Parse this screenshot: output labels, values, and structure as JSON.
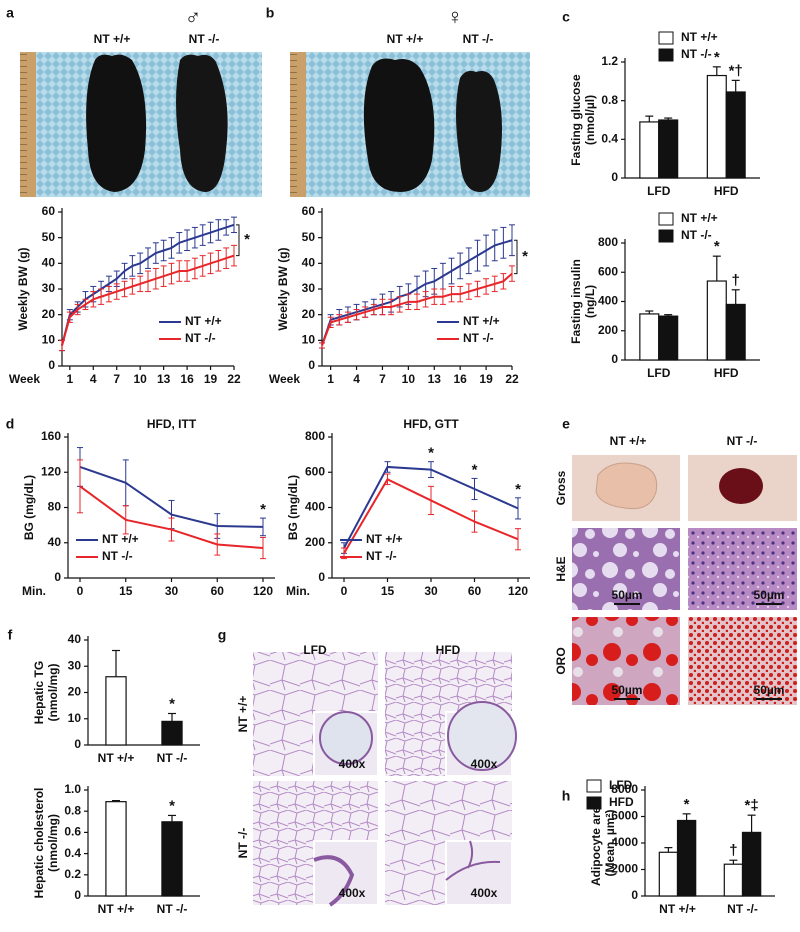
{
  "figure": {
    "panel_letters": [
      "a",
      "b",
      "c",
      "d",
      "e",
      "f",
      "g",
      "h"
    ],
    "a": {
      "sex": "♂",
      "genotypes": [
        "NT +/+",
        "NT -/-"
      ]
    },
    "b": {
      "sex": "♀",
      "genotypes": [
        "NT +/+",
        "NT -/-"
      ]
    },
    "e": {
      "columns": [
        "NT +/+",
        "NT -/-"
      ],
      "rows": [
        "Gross",
        "H&E",
        "ORO"
      ],
      "scale_bar": "50µm"
    },
    "g": {
      "columns": [
        "LFD",
        "HFD"
      ],
      "rows": [
        "NT +/+",
        "NT -/-"
      ],
      "magnification": "400x"
    }
  },
  "chart_data": [
    {
      "type": "line",
      "y_label": [
        "Weekly BW (g)"
      ],
      "x_label": "Week",
      "x": [
        0,
        1,
        2,
        3,
        4,
        5,
        6,
        7,
        8,
        9,
        10,
        11,
        12,
        13,
        14,
        15,
        16,
        17,
        18,
        19,
        20,
        21,
        22
      ],
      "xlim": [
        0,
        22
      ],
      "xticks": [
        1,
        4,
        7,
        10,
        13,
        16,
        19,
        22
      ],
      "ylim": [
        0,
        60
      ],
      "yticks": [
        0,
        10,
        20,
        30,
        40,
        50,
        60
      ],
      "legend": "lower right",
      "significance": "*",
      "series": [
        {
          "name": "NT +/+",
          "color": "#2b3990",
          "values": [
            8,
            20,
            23,
            26,
            28,
            30,
            32,
            34,
            37,
            39,
            40,
            42,
            44,
            45,
            46,
            48,
            49,
            50,
            51,
            52,
            53,
            54,
            55
          ],
          "errors": [
            2,
            2,
            2,
            3,
            3,
            3,
            3,
            3,
            3,
            4,
            4,
            4,
            4,
            4,
            4,
            4,
            4,
            4,
            4,
            4,
            4,
            3,
            3
          ]
        },
        {
          "name": "NT -/-",
          "color": "#e8262a",
          "values": [
            8,
            19,
            22,
            24,
            26,
            27,
            28,
            29,
            30,
            31,
            32,
            33,
            34,
            35,
            36,
            37,
            37,
            38,
            39,
            40,
            41,
            42,
            43
          ],
          "errors": [
            2,
            2,
            2,
            2,
            3,
            3,
            3,
            3,
            3,
            3,
            3,
            4,
            4,
            4,
            4,
            4,
            4,
            4,
            4,
            4,
            4,
            4,
            4
          ]
        }
      ]
    },
    {
      "type": "line",
      "y_label": [
        "Weekly BW (g)"
      ],
      "x_label": "Week",
      "x": [
        0,
        1,
        2,
        3,
        4,
        5,
        6,
        7,
        8,
        9,
        10,
        11,
        12,
        13,
        14,
        15,
        16,
        17,
        18,
        19,
        20,
        21,
        22
      ],
      "xlim": [
        0,
        22
      ],
      "xticks": [
        1,
        4,
        7,
        10,
        13,
        16,
        19,
        22
      ],
      "ylim": [
        0,
        60
      ],
      "yticks": [
        0,
        10,
        20,
        30,
        40,
        50,
        60
      ],
      "legend": "lower right",
      "significance": "*",
      "series": [
        {
          "name": "NT +/+",
          "color": "#2b3990",
          "values": [
            8,
            18,
            19,
            20,
            21,
            22,
            23,
            24,
            25,
            27,
            28,
            30,
            32,
            33,
            35,
            37,
            39,
            41,
            43,
            45,
            47,
            48,
            49
          ],
          "errors": [
            1,
            2,
            3,
            3,
            3,
            3,
            3,
            4,
            4,
            4,
            4,
            5,
            5,
            5,
            5,
            5,
            5,
            5,
            6,
            6,
            6,
            6,
            6
          ]
        },
        {
          "name": "NT -/-",
          "color": "#e8262a",
          "values": [
            8,
            17,
            18,
            19,
            20,
            21,
            22,
            23,
            23,
            24,
            25,
            25,
            26,
            27,
            27,
            28,
            28,
            29,
            30,
            31,
            32,
            33,
            36
          ],
          "errors": [
            1,
            2,
            2,
            2,
            2,
            2,
            2,
            3,
            3,
            3,
            3,
            3,
            3,
            3,
            3,
            3,
            3,
            3,
            3,
            3,
            3,
            3,
            3
          ]
        }
      ]
    },
    {
      "type": "bar",
      "y_label": [
        "Fasting glucose",
        "(nmol/µl)"
      ],
      "categories": [
        "LFD",
        "HFD"
      ],
      "ylim": [
        0,
        1.2
      ],
      "yticks": [
        0,
        0.4,
        0.8,
        1.2
      ],
      "legend": "top",
      "series": [
        {
          "name": "NT +/+",
          "color": "#ffffff",
          "values": [
            0.58,
            1.06
          ],
          "errors": [
            0.06,
            0.09
          ],
          "annotations": [
            null,
            "*"
          ]
        },
        {
          "name": "NT -/-",
          "color": "#111111",
          "values": [
            0.6,
            0.89
          ],
          "errors": [
            0.02,
            0.12
          ],
          "annotations": [
            null,
            "*†"
          ]
        }
      ]
    },
    {
      "type": "bar",
      "y_label": [
        "Fasting insulin",
        "(ng/L)"
      ],
      "categories": [
        "LFD",
        "HFD"
      ],
      "ylim": [
        0,
        800
      ],
      "yticks": [
        0,
        200,
        400,
        600,
        800
      ],
      "legend": "top",
      "series": [
        {
          "name": "NT +/+",
          "color": "#ffffff",
          "values": [
            315,
            540
          ],
          "errors": [
            20,
            170
          ],
          "annotations": [
            null,
            "*"
          ]
        },
        {
          "name": "NT -/-",
          "color": "#111111",
          "values": [
            300,
            380
          ],
          "errors": [
            10,
            100
          ],
          "annotations": [
            null,
            "†"
          ]
        }
      ]
    },
    {
      "type": "line",
      "title": "HFD, ITT",
      "y_label": [
        "BG (mg/dL)"
      ],
      "x_label": "Min.",
      "categories": [
        "0",
        "15",
        "30",
        "60",
        "120"
      ],
      "ylim": [
        0,
        160
      ],
      "yticks": [
        0,
        40,
        80,
        120,
        160
      ],
      "legend": "lower left",
      "point_annotations": [
        null,
        null,
        null,
        null,
        "*"
      ],
      "series": [
        {
          "name": "NT +/+",
          "color": "#2b3990",
          "values": [
            126,
            108,
            72,
            59,
            58
          ],
          "errors": [
            22,
            26,
            16,
            14,
            10
          ]
        },
        {
          "name": "NT -/-",
          "color": "#e8262a",
          "values": [
            104,
            66,
            55,
            38,
            34
          ],
          "errors": [
            30,
            16,
            13,
            12,
            12
          ]
        }
      ]
    },
    {
      "type": "line",
      "title": "HFD, GTT",
      "y_label": [
        "BG (mg/dL)"
      ],
      "x_label": "Min.",
      "categories": [
        "0",
        "15",
        "30",
        "60",
        "120"
      ],
      "ylim": [
        0,
        800
      ],
      "yticks": [
        0,
        200,
        400,
        600,
        800
      ],
      "legend": "lower left",
      "point_annotations": [
        null,
        null,
        "*",
        "*",
        "*"
      ],
      "series": [
        {
          "name": "NT +/+",
          "color": "#2b3990",
          "values": [
            170,
            630,
            615,
            505,
            395
          ],
          "errors": [
            30,
            30,
            45,
            60,
            60
          ]
        },
        {
          "name": "NT -/-",
          "color": "#e8262a",
          "values": [
            140,
            560,
            440,
            320,
            220
          ],
          "errors": [
            30,
            30,
            80,
            60,
            60
          ]
        }
      ]
    },
    {
      "type": "bar",
      "y_label": [
        "Hepatic TG",
        "(nmol/mg)"
      ],
      "categories": [
        "NT +/+",
        "NT -/-"
      ],
      "ylim": [
        0,
        40
      ],
      "yticks": [
        0,
        10,
        20,
        30,
        40
      ],
      "series": [
        {
          "colors": [
            "#ffffff",
            "#111111"
          ],
          "values": [
            26,
            9
          ],
          "errors": [
            10,
            3
          ],
          "annotations": [
            null,
            "*"
          ]
        }
      ]
    },
    {
      "type": "bar",
      "y_label": [
        "Hepatic cholesterol",
        "(nmol/mg)"
      ],
      "categories": [
        "NT +/+",
        "NT -/-"
      ],
      "ylim": [
        0,
        1
      ],
      "yticks": [
        0,
        0.2,
        0.4,
        0.6,
        0.8,
        {
          "value": 1,
          "label": "1.0"
        }
      ],
      "series": [
        {
          "colors": [
            "#ffffff",
            "#111111"
          ],
          "values": [
            0.89,
            0.7
          ],
          "errors": [
            0.01,
            0.06
          ],
          "annotations": [
            null,
            "*"
          ]
        }
      ]
    },
    {
      "type": "bar",
      "y_label": [
        "Adipocyte area",
        "(Mean, µm²)"
      ],
      "categories": [
        "NT +/+",
        "NT -/-"
      ],
      "ylim": [
        0,
        8000
      ],
      "yticks": [
        0,
        2000,
        4000,
        6000,
        8000
      ],
      "legend": "upper left",
      "series": [
        {
          "name": "LFD",
          "color": "#ffffff",
          "values": [
            3300,
            2400
          ],
          "errors": [
            350,
            300
          ],
          "annotations": [
            null,
            "†"
          ]
        },
        {
          "name": "HFD",
          "color": "#111111",
          "values": [
            5700,
            4800
          ],
          "errors": [
            500,
            1300
          ],
          "annotations": [
            "*",
            "*‡"
          ]
        }
      ]
    }
  ]
}
